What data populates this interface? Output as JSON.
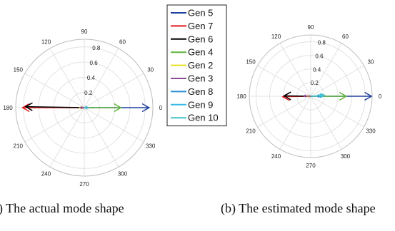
{
  "chart_data": [
    {
      "type": "polar-compass",
      "caption": "(a) The actual mode shape",
      "r_ticks": [
        "0.2",
        "0.4",
        "0.6",
        "0.8"
      ],
      "angle_ticks": [
        "0",
        "30",
        "60",
        "90",
        "120",
        "150",
        "180",
        "210",
        "240",
        "270",
        "300",
        "330"
      ],
      "series": [
        {
          "name": "Gen 5",
          "color": "#1f3f9e",
          "magnitude": 0.85,
          "angle": 0
        },
        {
          "name": "Gen 7",
          "color": "#e0191c",
          "magnitude": 0.81,
          "angle": 180
        },
        {
          "name": "Gen 6",
          "color": "#000000",
          "magnitude": 0.77,
          "angle": 179
        },
        {
          "name": "Gen 4",
          "color": "#5fb33a",
          "magnitude": 0.48,
          "angle": 0
        },
        {
          "name": "Gen 2",
          "color": "#e8e01a",
          "magnitude": 0.06,
          "angle": 180
        },
        {
          "name": "Gen 3",
          "color": "#8e4b97",
          "magnitude": 0.05,
          "angle": 180
        },
        {
          "name": "Gen 8",
          "color": "#2f8ed8",
          "magnitude": 0.05,
          "angle": 0
        },
        {
          "name": "Gen 9",
          "color": "#35b8e6",
          "magnitude": 0.04,
          "angle": 0
        },
        {
          "name": "Gen 10",
          "color": "#45c3c8",
          "magnitude": 0.04,
          "angle": 0
        }
      ]
    },
    {
      "type": "polar-compass",
      "caption": "(b) The estimated mode shape",
      "r_ticks": [
        "0.2",
        "0.4",
        "0.6",
        "0.8"
      ],
      "angle_ticks": [
        "0",
        "30",
        "60",
        "90",
        "120",
        "150",
        "180",
        "210",
        "240",
        "270",
        "300",
        "330"
      ],
      "series": [
        {
          "name": "Gen 5",
          "color": "#1f3f9e",
          "magnitude": 0.89,
          "angle": 0
        },
        {
          "name": "Gen 7",
          "color": "#e0191c",
          "magnitude": 0.41,
          "angle": 181
        },
        {
          "name": "Gen 6",
          "color": "#000000",
          "magnitude": 0.39,
          "angle": 179
        },
        {
          "name": "Gen 4",
          "color": "#5fb33a",
          "magnitude": 0.52,
          "angle": 0
        },
        {
          "name": "Gen 2",
          "color": "#e8e01a",
          "magnitude": 0.05,
          "angle": 178
        },
        {
          "name": "Gen 3",
          "color": "#8e4b97",
          "magnitude": 0.1,
          "angle": 177
        },
        {
          "name": "Gen 8",
          "color": "#2f8ed8",
          "magnitude": 0.14,
          "angle": 2
        },
        {
          "name": "Gen 9",
          "color": "#35b8e6",
          "magnitude": 0.18,
          "angle": 3
        },
        {
          "name": "Gen 10",
          "color": "#45c3c8",
          "magnitude": 0.2,
          "angle": 4
        }
      ]
    }
  ],
  "legend": {
    "placement": "center",
    "items": [
      {
        "name": "Gen 5",
        "color": "#1f3f9e"
      },
      {
        "name": "Gen 7",
        "color": "#e0191c"
      },
      {
        "name": "Gen 6",
        "color": "#000000"
      },
      {
        "name": "Gen 4",
        "color": "#5fb33a"
      },
      {
        "name": "Gen 2",
        "color": "#e8e01a"
      },
      {
        "name": "Gen 3",
        "color": "#8e4b97"
      },
      {
        "name": "Gen 8",
        "color": "#2f8ed8"
      },
      {
        "name": "Gen 9",
        "color": "#35b8e6"
      },
      {
        "name": "Gen 10",
        "color": "#45c3c8"
      }
    ]
  }
}
